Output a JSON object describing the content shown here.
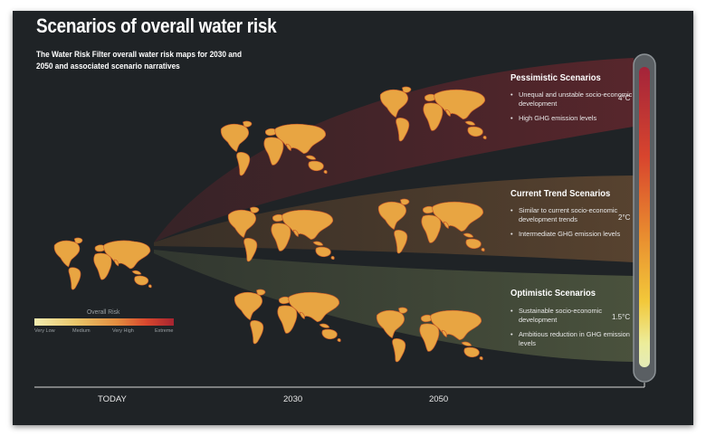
{
  "header": {
    "title": "Scenarios of overall water risk",
    "subtitle": "The Water Risk Filter overall water risk maps for 2030 and 2050 and associated scenario narratives"
  },
  "scenarios": [
    {
      "title": "Pessimistic Scenarios",
      "bullets": [
        "Unequal and unstable socio-economic development",
        "High GHG emission levels"
      ],
      "temperature": "4°C",
      "band_color": "#4a2528"
    },
    {
      "title": "Current Trend Scenarios",
      "bullets": [
        "Similar to current socio-economic development trends",
        "Intermediate GHG emission levels"
      ],
      "temperature": "2°C",
      "band_color": "#4a3a2a"
    },
    {
      "title": "Optimistic Scenarios",
      "bullets": [
        "Sustainable socio-economic development",
        "Ambitious reduction in GHG emission levels"
      ],
      "temperature": "1.5°C",
      "band_color": "#3e4536"
    }
  ],
  "legend": {
    "title": "Overall Risk",
    "labels": [
      "Very Low",
      "Medium",
      "Very High",
      "Extreme"
    ],
    "colors": [
      "#f2ecb0",
      "#e9c66a",
      "#e38b3e",
      "#d9482e",
      "#a62430"
    ]
  },
  "timeline": {
    "labels": [
      "TODAY",
      "2030",
      "2050"
    ]
  }
}
